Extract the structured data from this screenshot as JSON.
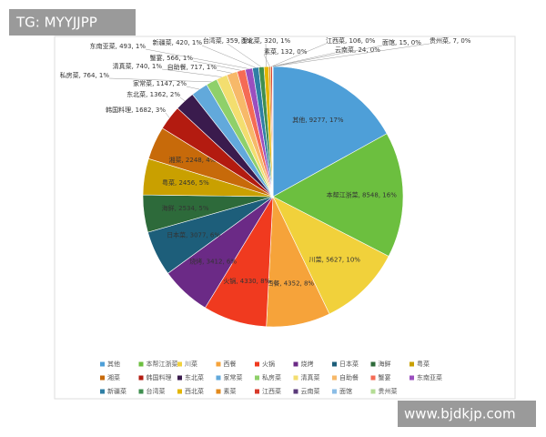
{
  "chart_data": {
    "type": "pie",
    "categories": [
      "其他",
      "本帮江浙菜",
      "川菜",
      "西餐",
      "火锅",
      "烧烤",
      "日本菜",
      "海鲜",
      "粤菜",
      "湘菜",
      "韩国料理",
      "东北菜",
      "家常菜",
      "私房菜",
      "清真菜",
      "自助餐",
      "蟹宴",
      "东南亚菜",
      "新疆菜",
      "台湾菜",
      "西北菜",
      "素菜",
      "江西菜",
      "云南菜",
      "面馆",
      "贵州菜"
    ],
    "values": [
      9277,
      8548,
      5627,
      4352,
      4330,
      3412,
      3077,
      2534,
      2456,
      2248,
      1682,
      1362,
      1147,
      764,
      740,
      717,
      566,
      493,
      420,
      359,
      320,
      132,
      106,
      24,
      15,
      7
    ],
    "value_labels": [
      "其他, 9277, 17%",
      "本帮江浙菜, 8548, 16%",
      "川菜, 5627, 10%",
      "西餐, 4352, 8%",
      "火锅, 4330, 8%",
      "烧烤, 3412, 6%",
      "日本菜, 3077, 6%",
      "海鲜, 2534, 5%",
      "粤菜, 2456, 5%",
      "湘菜, 2248, 4%",
      "韩国料理, 1682, 3%",
      "东北菜, 1362, 2%",
      "家常菜, 1147, 2%",
      "私房菜, 764, 1%",
      "清真菜, 740, 1%",
      "自助餐, 717, 1%",
      "蟹宴, 566, 1%",
      "东南亚菜, 493, 1%",
      "新疆菜, 420, 1%",
      "台湾菜, 359, 1%",
      "西北菜, 320, 1%",
      "素菜, 132, 0%",
      "江西菜, 106, 0%",
      "云南菜, 24, 0%",
      "面馆, 15, 0%",
      "贵州菜, 7, 0%"
    ],
    "colors": [
      "#4e9fd8",
      "#6cbf3f",
      "#f1d13b",
      "#f6a33a",
      "#f03a1f",
      "#6b2a86",
      "#1d5e7a",
      "#2d6a3a",
      "#c9a000",
      "#c76a0a",
      "#b31b10",
      "#3a1b4d",
      "#62a9db",
      "#8fd06a",
      "#f3de6f",
      "#f7b969",
      "#f56b55",
      "#9b4fbf",
      "#2f7fa5",
      "#3f8f4f",
      "#e4b600",
      "#e38a1c",
      "#d73a2a",
      "#5a3a7a",
      "#8bbde6",
      "#b4dd95"
    ],
    "legend": "bottom"
  },
  "watermarks": [
    "TG: MYYJJPP",
    "www.bjdkjp.com"
  ]
}
